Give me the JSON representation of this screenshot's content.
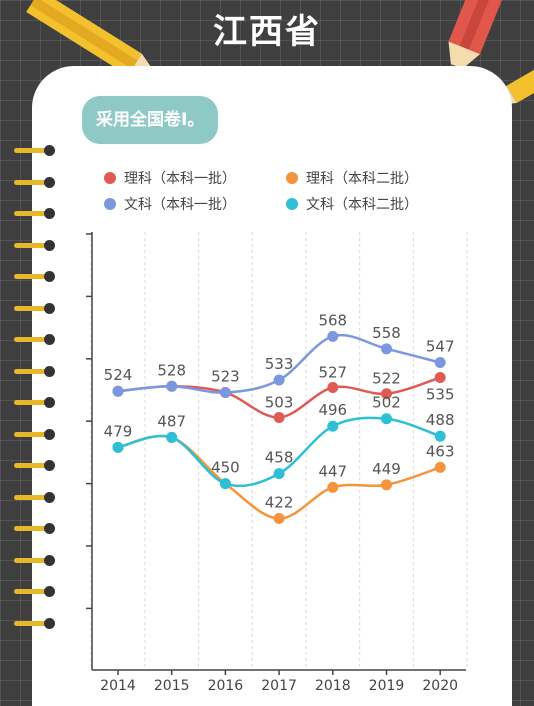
{
  "page_title": "江西省",
  "note": "采用全国卷Ⅰ。",
  "chart_data": {
    "type": "line",
    "x": [
      2014,
      2015,
      2016,
      2017,
      2018,
      2019,
      2020
    ],
    "ylim": [
      300,
      650
    ],
    "grid": "vertical-dashed",
    "legend_position": "top",
    "series": [
      {
        "name": "理科（本科一批）",
        "color": "#e05a55",
        "values": [
          524,
          528,
          523,
          503,
          527,
          522,
          535
        ]
      },
      {
        "name": "理科（本科二批）",
        "color": "#f4943c",
        "values": [
          479,
          487,
          450,
          422,
          447,
          449,
          463
        ]
      },
      {
        "name": "文科（本科一批）",
        "color": "#7b97e0",
        "values": [
          524,
          528,
          523,
          533,
          568,
          558,
          547
        ]
      },
      {
        "name": "文科（本科二批）",
        "color": "#2dbfd6",
        "values": [
          479,
          487,
          450,
          458,
          496,
          502,
          488
        ]
      }
    ]
  }
}
